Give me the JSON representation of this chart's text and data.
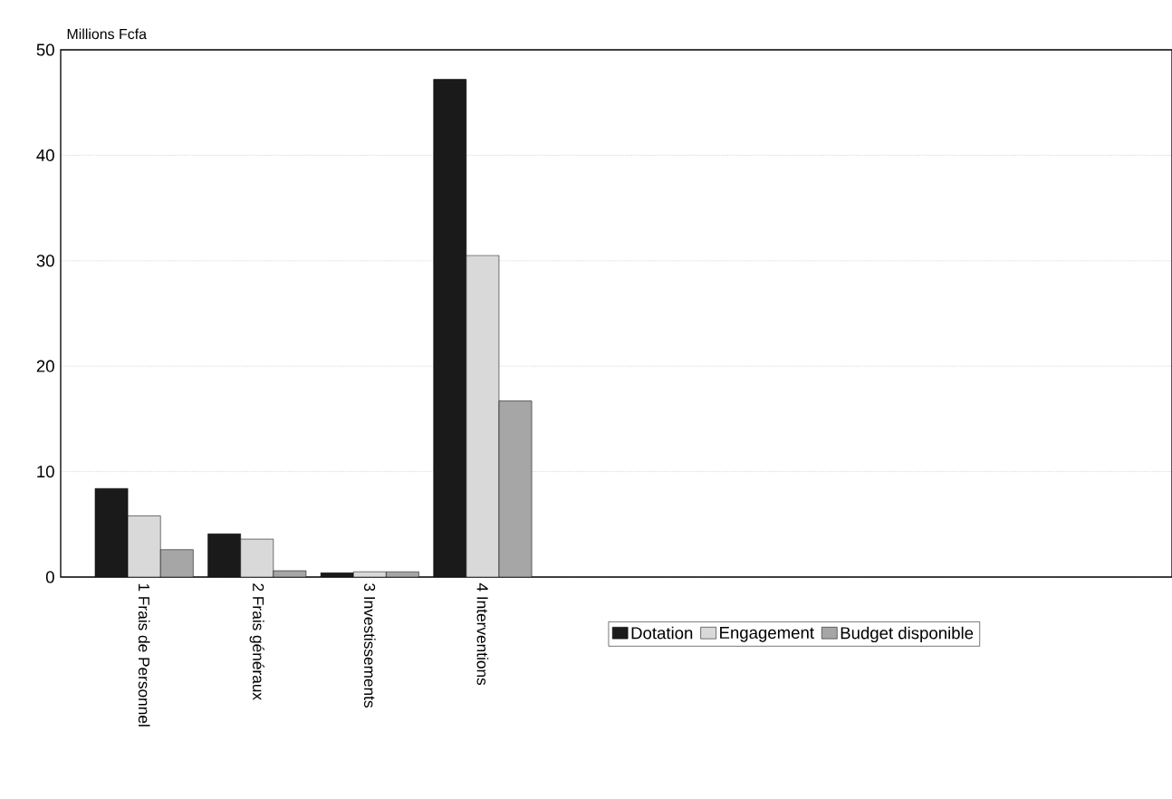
{
  "chart_data": {
    "type": "bar",
    "ylabel": "Millions Fcfa",
    "categories": [
      "1 Frais de Personnel",
      "2 Frais généraux",
      "3 Investissements",
      "4 Interventions",
      null,
      null,
      null,
      null,
      null,
      null
    ],
    "series": [
      {
        "name": "Dotation",
        "color": "#1a1a1a",
        "values": [
          8.4,
          4.1,
          0.4,
          47.2,
          null,
          null,
          null,
          null,
          null,
          null
        ]
      },
      {
        "name": "Engagement",
        "color": "#d9d9d9",
        "values": [
          5.8,
          3.6,
          0.5,
          30.5,
          null,
          null,
          null,
          null,
          null,
          null
        ]
      },
      {
        "name": "Budget disponible",
        "color": "#a6a6a6",
        "values": [
          2.6,
          0.6,
          0.5,
          16.7,
          null,
          null,
          null,
          null,
          null,
          null
        ]
      }
    ],
    "ylim": [
      0,
      50
    ],
    "yticks": [
      0,
      10,
      20,
      30,
      40,
      50
    ],
    "grid": "y",
    "legend": "bottom"
  }
}
